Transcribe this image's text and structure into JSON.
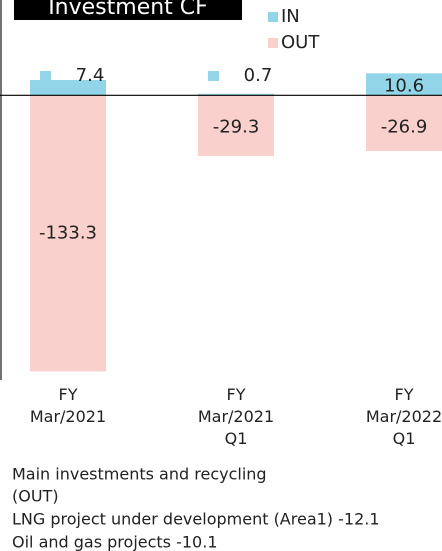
{
  "chart_data": {
    "type": "bar",
    "title": "Investment CF",
    "categories": [
      "FY\nMar/2021",
      "FY\nMar/2021\nQ1",
      "FY\nMar/2022\nQ1"
    ],
    "series": [
      {
        "name": "IN",
        "color": "#92d5e8",
        "values": [
          7.4,
          0.7,
          10.6
        ]
      },
      {
        "name": "OUT",
        "color": "#f9d0cb",
        "values": [
          -133.3,
          -29.3,
          -26.9
        ]
      }
    ],
    "ylim": [
      -135,
      46
    ]
  },
  "notes": {
    "heading": "Main investments and recycling",
    "sub": "(OUT)",
    "items": [
      "LNG project under development (Area1) -12.1",
      "Oil and gas projects -10.1"
    ]
  }
}
